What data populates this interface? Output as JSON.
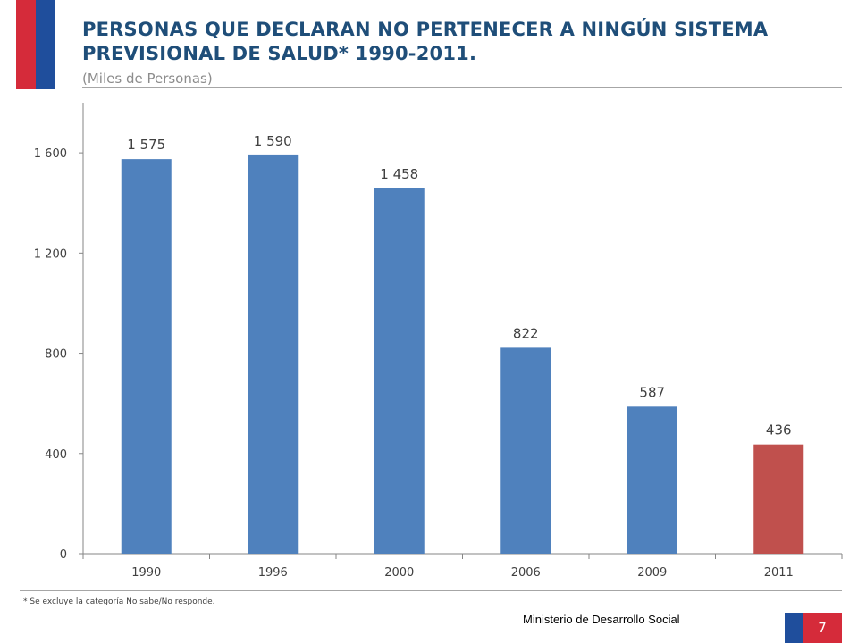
{
  "header": {
    "title": "PERSONAS QUE DECLARAN NO PERTENECER A NINGÚN SISTEMA PREVISIONAL DE SALUD* 1990-2011.",
    "subtitle": "(Miles de Personas)"
  },
  "footer": {
    "footnote": "* Se excluye la categoría No sabe/No responde.",
    "ministry": "Ministerio de Desarrollo Social",
    "page_number": "7"
  },
  "colors": {
    "bar_default": "#4f81bd",
    "bar_highlight": "#c0504d",
    "title": "#1f4e79",
    "flag_red": "#d52b3a",
    "flag_blue": "#1f4e9c"
  },
  "chart_data": {
    "type": "bar",
    "categories": [
      "1990",
      "1996",
      "2000",
      "2006",
      "2009",
      "2011"
    ],
    "values": [
      1575,
      1590,
      1458,
      822,
      587,
      436
    ],
    "data_labels": [
      "1 575",
      "1 590",
      "1 458",
      "822",
      "587",
      "436"
    ],
    "highlight_index": 5,
    "ylim": [
      0,
      1800
    ],
    "yticks": [
      0,
      400,
      800,
      1200,
      1600
    ],
    "ytick_labels": [
      "0",
      "400",
      "800",
      "1 200",
      "1 600"
    ],
    "grid": false,
    "legend": "none"
  }
}
